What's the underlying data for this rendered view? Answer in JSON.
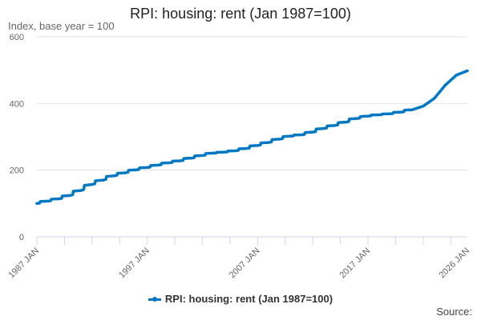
{
  "chart_data": {
    "type": "line",
    "title": "RPI: housing: rent (Jan 1987=100)",
    "ylabel": "Index, base year = 100",
    "xlabel": "",
    "source_label": "Source:",
    "ylim": [
      0,
      600
    ],
    "yticks": [
      0,
      200,
      400,
      600
    ],
    "xlim": [
      1987,
      2026
    ],
    "xticks": [
      {
        "year": 1987,
        "label": "1987 JAN"
      },
      {
        "year": 1997,
        "label": "1997 JAN"
      },
      {
        "year": 2007,
        "label": "2007 JAN"
      },
      {
        "year": 2017,
        "label": "2017 JAN"
      },
      {
        "year": 2026,
        "label": "2026 JAN"
      }
    ],
    "grid": true,
    "legend_position": "bottom",
    "series": [
      {
        "name": "RPI: housing: rent (Jan 1987=100)",
        "color": "#0077c2",
        "x": [
          1987,
          1988,
          1989,
          1990,
          1991,
          1992,
          1993,
          1994,
          1995,
          1996,
          1997,
          1998,
          1999,
          2000,
          2001,
          2002,
          2003,
          2004,
          2005,
          2006,
          2007,
          2008,
          2009,
          2010,
          2011,
          2012,
          2013,
          2014,
          2015,
          2016,
          2017,
          2018,
          2019,
          2020,
          2021,
          2022,
          2023,
          2024,
          2025,
          2026
        ],
        "values": [
          100,
          107,
          114,
          124,
          139,
          157,
          170,
          183,
          192,
          201,
          208,
          215,
          222,
          228,
          236,
          244,
          251,
          254,
          258,
          265,
          274,
          283,
          293,
          302,
          306,
          314,
          325,
          334,
          344,
          355,
          362,
          366,
          369,
          374,
          381,
          392,
          415,
          455,
          485,
          498
        ]
      }
    ]
  }
}
